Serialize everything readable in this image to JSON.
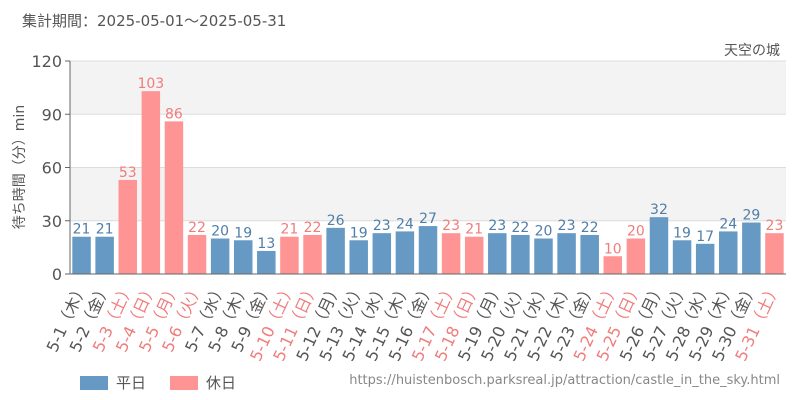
{
  "header": {
    "period": "集計期間：2025-05-01～2025-05-31",
    "ride_name": "天空の城"
  },
  "legend": {
    "weekday_label": "平日",
    "holiday_label": "休日"
  },
  "footer": {
    "url": "https://huistenbosch.parksreal.jp/attraction/castle_in_the_sky.html"
  },
  "colors": {
    "weekday": "#6699c4",
    "holiday": "#ff9494",
    "weekday_text": "#4f7ea8",
    "holiday_text": "#f07c7c",
    "axis_text": "#555555"
  },
  "chart_data": {
    "type": "bar",
    "ylabel": "待ち時間（分）min",
    "ylim": [
      0,
      120
    ],
    "yticks": [
      0,
      30,
      60,
      90,
      120
    ],
    "grid": true,
    "legend_position": "bottom-left",
    "categories": [
      "5-1（木）",
      "5-2（金）",
      "5-3（土）",
      "5-4（日）",
      "5-5（月）",
      "5-6（火）",
      "5-7（水）",
      "5-8（木）",
      "5-9（金）",
      "5-10（土）",
      "5-11（日）",
      "5-12（月）",
      "5-13（火）",
      "5-14（水）",
      "5-15（木）",
      "5-16（金）",
      "5-17（土）",
      "5-18（日）",
      "5-19（月）",
      "5-20（火）",
      "5-21（水）",
      "5-22（木）",
      "5-23（金）",
      "5-24（土）",
      "5-25（日）",
      "5-26（月）",
      "5-27（火）",
      "5-28（水）",
      "5-29（木）",
      "5-30（金）",
      "5-31（土）"
    ],
    "values": [
      21,
      21,
      53,
      103,
      86,
      22,
      20,
      19,
      13,
      21,
      22,
      26,
      19,
      23,
      24,
      27,
      23,
      21,
      23,
      22,
      20,
      23,
      22,
      10,
      20,
      32,
      19,
      17,
      24,
      29,
      23
    ],
    "day_type": [
      "平日",
      "平日",
      "休日",
      "休日",
      "休日",
      "休日",
      "平日",
      "平日",
      "平日",
      "休日",
      "休日",
      "平日",
      "平日",
      "平日",
      "平日",
      "平日",
      "休日",
      "休日",
      "平日",
      "平日",
      "平日",
      "平日",
      "平日",
      "休日",
      "休日",
      "平日",
      "平日",
      "平日",
      "平日",
      "平日",
      "休日"
    ]
  }
}
